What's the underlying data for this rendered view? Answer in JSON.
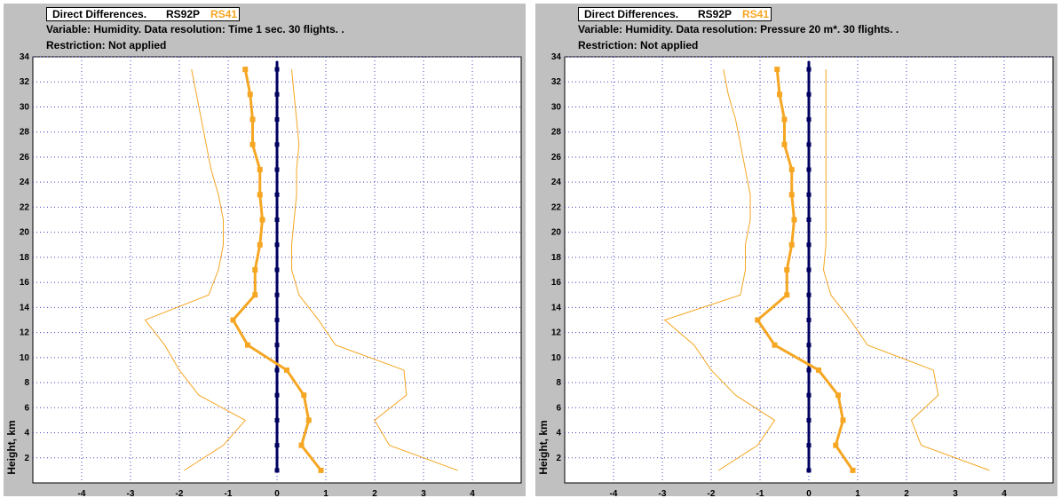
{
  "colors": {
    "rs92p": "#000000",
    "rs41": "#f5a623",
    "zero_line": "#000060",
    "panel_bg": "#c0c0c0"
  },
  "chart_data": [
    {
      "type": "line",
      "title": "Direct Differences.",
      "legend": [
        "RS92P",
        "RS41"
      ],
      "line2": "Variable: Humidity. Data resolution: Time 1 sec. 30 flights. .",
      "line3": "Restriction: Not applied",
      "ylabel": "Height, km",
      "xlabel": "",
      "xlim": [
        -5,
        5
      ],
      "ylim": [
        0,
        34
      ],
      "xticks": [
        -4,
        -3,
        -2,
        -1,
        0,
        1,
        2,
        3,
        4
      ],
      "yticks": [
        2,
        4,
        6,
        8,
        10,
        12,
        14,
        16,
        18,
        20,
        22,
        24,
        26,
        28,
        30,
        32,
        34
      ],
      "grid": true,
      "series": [
        {
          "name": "RS92P",
          "x": [
            0,
            0,
            0,
            0,
            0,
            0,
            0,
            0,
            0,
            0,
            0,
            0,
            0,
            0,
            0,
            0,
            0
          ],
          "y": [
            1,
            3,
            5,
            7,
            9,
            11,
            13,
            15,
            17,
            19,
            21,
            23,
            25,
            27,
            29,
            31,
            33
          ]
        },
        {
          "name": "RS41",
          "x": [
            0.9,
            0.5,
            0.65,
            0.55,
            0.2,
            -0.6,
            -0.9,
            -0.45,
            -0.45,
            -0.35,
            -0.3,
            -0.35,
            -0.35,
            -0.5,
            -0.5,
            -0.55,
            -0.65
          ],
          "y": [
            1,
            3,
            5,
            7,
            9,
            11,
            13,
            15,
            17,
            19,
            21,
            23,
            25,
            27,
            29,
            31,
            33
          ]
        },
        {
          "name": "RS41 lower bound",
          "x": [
            -1.9,
            -1.1,
            -0.65,
            -1.6,
            -2.0,
            -2.3,
            -2.7,
            -1.4,
            -1.2,
            -1.1,
            -1.1,
            -1.2,
            -1.35,
            -1.45,
            -1.55,
            -1.65,
            -1.75
          ],
          "y": [
            1,
            3,
            5,
            7,
            9,
            11,
            13,
            15,
            17,
            19,
            21,
            23,
            25,
            27,
            29,
            31,
            33
          ]
        },
        {
          "name": "RS41 upper bound",
          "x": [
            3.7,
            2.3,
            2.0,
            2.65,
            2.6,
            1.2,
            0.85,
            0.45,
            0.3,
            0.3,
            0.35,
            0.4,
            0.4,
            0.45,
            0.4,
            0.35,
            0.3
          ],
          "y": [
            1,
            3,
            5,
            7,
            9,
            11,
            13,
            15,
            17,
            19,
            21,
            23,
            25,
            27,
            29,
            31,
            33
          ]
        }
      ]
    },
    {
      "type": "line",
      "title": "Direct Differences.",
      "legend": [
        "RS92P",
        "RS41"
      ],
      "line2": "Variable: Humidity. Data resolution: Pressure 20 m*. 30 flights. .",
      "line3": "Restriction: Not applied",
      "ylabel": "Height, km",
      "xlabel": "",
      "xlim": [
        -5,
        5
      ],
      "ylim": [
        0,
        34
      ],
      "xticks": [
        -4,
        -3,
        -2,
        -1,
        0,
        1,
        2,
        3,
        4
      ],
      "yticks": [
        2,
        4,
        6,
        8,
        10,
        12,
        14,
        16,
        18,
        20,
        22,
        24,
        26,
        28,
        30,
        32,
        34
      ],
      "grid": true,
      "series": [
        {
          "name": "RS92P",
          "x": [
            0,
            0,
            0,
            0,
            0,
            0,
            0,
            0,
            0,
            0,
            0,
            0,
            0,
            0,
            0,
            0,
            0
          ],
          "y": [
            1,
            3,
            5,
            7,
            9,
            11,
            13,
            15,
            17,
            19,
            21,
            23,
            25,
            27,
            29,
            31,
            33
          ]
        },
        {
          "name": "RS41",
          "x": [
            0.9,
            0.55,
            0.7,
            0.6,
            0.2,
            -0.7,
            -1.05,
            -0.45,
            -0.45,
            -0.35,
            -0.3,
            -0.35,
            -0.35,
            -0.5,
            -0.5,
            -0.6,
            -0.65
          ],
          "y": [
            1,
            3,
            5,
            7,
            9,
            11,
            13,
            15,
            17,
            19,
            21,
            23,
            25,
            27,
            29,
            31,
            33
          ]
        },
        {
          "name": "RS41 lower bound",
          "x": [
            -1.85,
            -1.05,
            -0.7,
            -1.5,
            -2.0,
            -2.35,
            -2.95,
            -1.4,
            -1.3,
            -1.3,
            -1.2,
            -1.2,
            -1.3,
            -1.4,
            -1.5,
            -1.65,
            -1.75
          ],
          "y": [
            1,
            3,
            5,
            7,
            9,
            11,
            13,
            15,
            17,
            19,
            21,
            23,
            25,
            27,
            29,
            31,
            33
          ]
        },
        {
          "name": "RS41 upper bound",
          "x": [
            3.7,
            2.3,
            2.1,
            2.65,
            2.55,
            1.2,
            0.85,
            0.45,
            0.3,
            0.35,
            0.35,
            0.35,
            0.35,
            0.35,
            0.35,
            0.35,
            0.35
          ],
          "y": [
            1,
            3,
            5,
            7,
            9,
            11,
            13,
            15,
            17,
            19,
            21,
            23,
            25,
            27,
            29,
            31,
            33
          ]
        }
      ]
    }
  ]
}
